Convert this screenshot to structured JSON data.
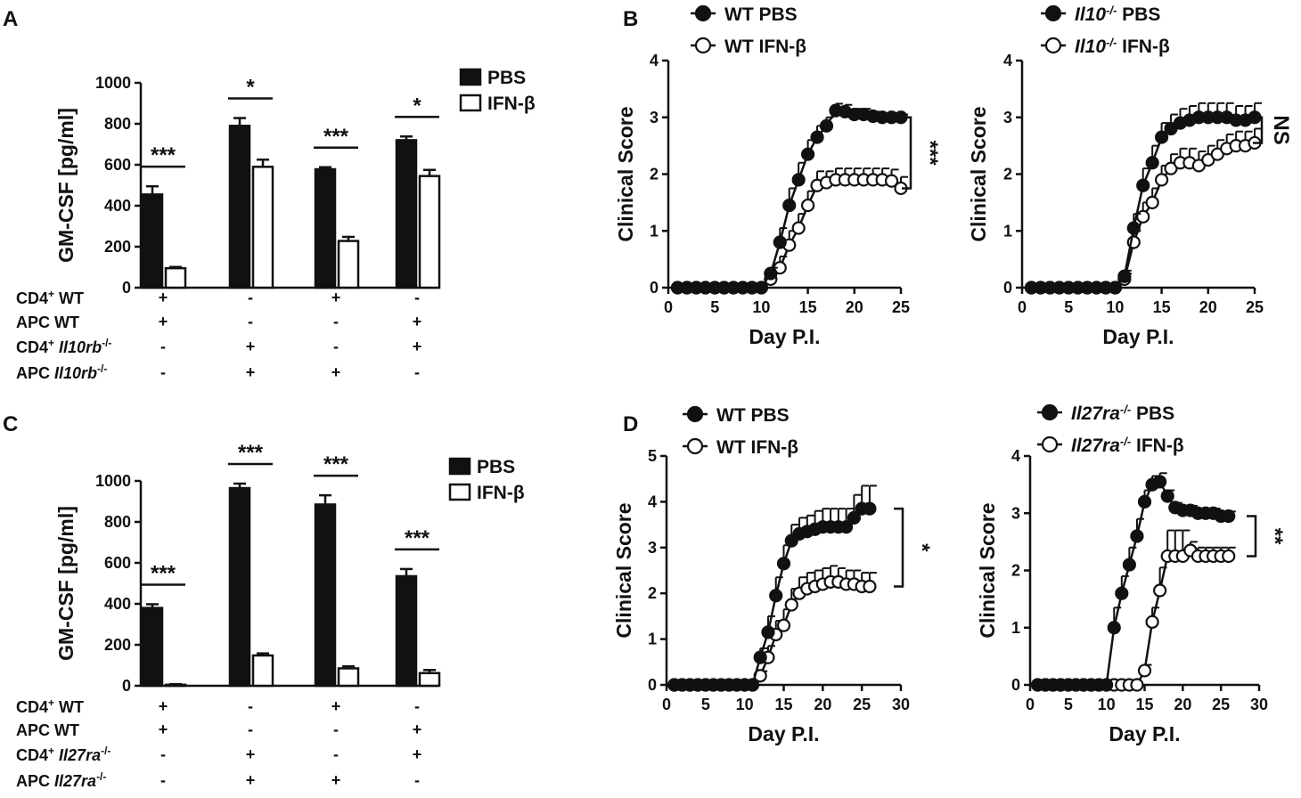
{
  "figure": {
    "panel_labels": [
      "A",
      "B",
      "C",
      "D"
    ]
  },
  "chart_data": [
    {
      "panel": "A",
      "type": "bar",
      "ylabel": "GM-CSF [pg/ml]",
      "ylim": [
        0,
        1000
      ],
      "yticks": [
        "0",
        "200",
        "400",
        "600",
        "800",
        "1000"
      ],
      "series": [
        {
          "name": "PBS",
          "color": "#111111",
          "values": [
            455,
            790,
            578,
            720
          ],
          "errors": [
            40,
            38,
            10,
            18
          ]
        },
        {
          "name": "IFN-β",
          "color": "#ffffff",
          "values": [
            95,
            590,
            228,
            545
          ],
          "errors": [
            6,
            35,
            20,
            30
          ]
        }
      ],
      "significance": [
        "***",
        "*",
        "***",
        "*"
      ],
      "conditions": [
        {
          "label": "CD4",
          "sup": "+",
          "suffix": " WT",
          "italic": "",
          "values": [
            "+",
            "-",
            "+",
            "-"
          ]
        },
        {
          "label": "APC WT",
          "sup": "",
          "suffix": "",
          "italic": "",
          "values": [
            "+",
            "-",
            "-",
            "+"
          ]
        },
        {
          "label": "CD4",
          "sup": "+",
          "suffix": " ",
          "italic": "Il10rb",
          "isup": "-/-",
          "values": [
            "-",
            "+",
            "-",
            "+"
          ]
        },
        {
          "label": "APC ",
          "sup": "",
          "suffix": "",
          "italic": "Il10rb",
          "isup": "-/-",
          "values": [
            "-",
            "+",
            "+",
            "-"
          ]
        }
      ]
    },
    {
      "panel": "C",
      "type": "bar",
      "ylabel": "GM-CSF [pg/ml]",
      "ylim": [
        0,
        1000
      ],
      "yticks": [
        "0",
        "200",
        "400",
        "600",
        "800",
        "1000"
      ],
      "series": [
        {
          "name": "PBS",
          "color": "#111111",
          "values": [
            380,
            965,
            885,
            535
          ],
          "errors": [
            18,
            22,
            45,
            35
          ]
        },
        {
          "name": "IFN-β",
          "color": "#ffffff",
          "values": [
            5,
            148,
            85,
            62
          ],
          "errors": [
            3,
            10,
            10,
            15
          ]
        }
      ],
      "significance": [
        "***",
        "***",
        "***",
        "***"
      ],
      "conditions": [
        {
          "label": "CD4",
          "sup": "+",
          "suffix": " WT",
          "italic": "",
          "values": [
            "+",
            "-",
            "+",
            "-"
          ]
        },
        {
          "label": "APC WT",
          "sup": "",
          "suffix": "",
          "italic": "",
          "values": [
            "+",
            "-",
            "-",
            "+"
          ]
        },
        {
          "label": "CD4",
          "sup": "+",
          "suffix": " ",
          "italic": "Il27ra",
          "isup": "-/-",
          "values": [
            "-",
            "+",
            "-",
            "+"
          ]
        },
        {
          "label": "APC ",
          "sup": "",
          "suffix": "",
          "italic": "Il27ra",
          "isup": "-/-",
          "values": [
            "-",
            "+",
            "+",
            "-"
          ]
        }
      ]
    },
    {
      "panel": "B",
      "type": "line",
      "xlabel": "Day P.I.",
      "ylabel": "Clinical Score",
      "xlim": [
        0,
        25
      ],
      "ylim": [
        0,
        4
      ],
      "xticks": [
        "0",
        "5",
        "10",
        "15",
        "20",
        "25"
      ],
      "yticks": [
        "0",
        "1",
        "2",
        "3",
        "4"
      ],
      "significance": "***",
      "series": [
        {
          "name": "WT PBS",
          "prefix": "WT",
          "sup": "",
          "rest": " PBS",
          "filled": true,
          "days": [
            1,
            2,
            3,
            4,
            5,
            6,
            7,
            8,
            9,
            10,
            11,
            12,
            13,
            14,
            15,
            16,
            17,
            18,
            19,
            20,
            21,
            22,
            23,
            24,
            25
          ],
          "values": [
            0,
            0,
            0,
            0,
            0,
            0,
            0,
            0,
            0,
            0,
            0.25,
            0.8,
            1.45,
            1.9,
            2.35,
            2.65,
            2.85,
            3.12,
            3.1,
            3.05,
            3.05,
            3.02,
            3.0,
            3.0,
            3.0
          ],
          "err": [
            0,
            0,
            0,
            0,
            0,
            0,
            0,
            0,
            0,
            0,
            0.1,
            0.25,
            0.3,
            0.3,
            0.25,
            0.2,
            0.15,
            0.12,
            0.12,
            0.1,
            0.1,
            0.08,
            0.07,
            0.05,
            0.05
          ]
        },
        {
          "name": "WT IFN-β",
          "prefix": "WT",
          "sup": "",
          "rest": " IFN-β",
          "filled": false,
          "days": [
            1,
            2,
            3,
            4,
            5,
            6,
            7,
            8,
            9,
            10,
            11,
            12,
            13,
            14,
            15,
            16,
            17,
            18,
            19,
            20,
            21,
            22,
            23,
            24,
            25
          ],
          "values": [
            0,
            0,
            0,
            0,
            0,
            0,
            0,
            0,
            0,
            0,
            0.15,
            0.35,
            0.75,
            1.05,
            1.45,
            1.8,
            1.85,
            1.9,
            1.9,
            1.9,
            1.9,
            1.9,
            1.9,
            1.88,
            1.75
          ],
          "err": [
            0,
            0,
            0,
            0,
            0,
            0,
            0,
            0,
            0,
            0,
            0.1,
            0.2,
            0.25,
            0.25,
            0.25,
            0.25,
            0.2,
            0.2,
            0.2,
            0.2,
            0.2,
            0.2,
            0.2,
            0.2,
            0.2
          ]
        }
      ]
    },
    {
      "panel": "B2",
      "type": "line",
      "xlabel": "Day P.I.",
      "ylabel": "Clinical Score",
      "xlim": [
        0,
        25
      ],
      "ylim": [
        0,
        4
      ],
      "xticks": [
        "0",
        "5",
        "10",
        "15",
        "20",
        "25"
      ],
      "yticks": [
        "0",
        "1",
        "2",
        "3",
        "4"
      ],
      "significance": "NS",
      "series": [
        {
          "name": "Il10-/- PBS",
          "prefix": "Il10",
          "sup": "-/-",
          "rest": " PBS",
          "filled": true,
          "days": [
            1,
            2,
            3,
            4,
            5,
            6,
            7,
            8,
            9,
            10,
            11,
            12,
            13,
            14,
            15,
            16,
            17,
            18,
            19,
            20,
            21,
            22,
            23,
            24,
            25
          ],
          "values": [
            0,
            0,
            0,
            0,
            0,
            0,
            0,
            0,
            0,
            0,
            0.2,
            1.05,
            1.8,
            2.2,
            2.65,
            2.8,
            2.9,
            2.95,
            3.0,
            3.0,
            3.0,
            3.0,
            2.95,
            2.95,
            3.0
          ],
          "err": [
            0,
            0,
            0,
            0,
            0,
            0,
            0,
            0,
            0,
            0,
            0.1,
            0.25,
            0.3,
            0.3,
            0.25,
            0.25,
            0.25,
            0.25,
            0.25,
            0.25,
            0.25,
            0.25,
            0.25,
            0.25,
            0.25
          ]
        },
        {
          "name": "Il10-/- IFN-β",
          "prefix": "Il10",
          "sup": "-/-",
          "rest": " IFN-β",
          "filled": false,
          "days": [
            1,
            2,
            3,
            4,
            5,
            6,
            7,
            8,
            9,
            10,
            11,
            12,
            13,
            14,
            15,
            16,
            17,
            18,
            19,
            20,
            21,
            22,
            23,
            24,
            25
          ],
          "values": [
            0,
            0,
            0,
            0,
            0,
            0,
            0,
            0,
            0,
            0,
            0.15,
            0.8,
            1.25,
            1.5,
            1.9,
            2.1,
            2.2,
            2.2,
            2.15,
            2.25,
            2.35,
            2.45,
            2.5,
            2.5,
            2.55
          ],
          "err": [
            0,
            0,
            0,
            0,
            0,
            0,
            0,
            0,
            0,
            0,
            0.1,
            0.2,
            0.25,
            0.25,
            0.25,
            0.25,
            0.25,
            0.25,
            0.25,
            0.25,
            0.25,
            0.25,
            0.25,
            0.25,
            0.25
          ]
        }
      ]
    },
    {
      "panel": "D",
      "type": "line",
      "xlabel": "Day P.I.",
      "ylabel": "Clinical Score",
      "xlim": [
        0,
        30
      ],
      "ylim": [
        0,
        5
      ],
      "xticks": [
        "0",
        "5",
        "10",
        "15",
        "20",
        "25",
        "30"
      ],
      "yticks": [
        "0",
        "1",
        "2",
        "3",
        "4",
        "5"
      ],
      "significance": "*",
      "series": [
        {
          "name": "WT PBS",
          "prefix": "WT",
          "sup": "",
          "rest": " PBS",
          "filled": true,
          "days": [
            1,
            2,
            3,
            4,
            5,
            6,
            7,
            8,
            9,
            10,
            11,
            12,
            13,
            14,
            15,
            16,
            17,
            18,
            19,
            20,
            21,
            22,
            23,
            24,
            25,
            26
          ],
          "values": [
            0,
            0,
            0,
            0,
            0,
            0,
            0,
            0,
            0,
            0,
            0,
            0.6,
            1.15,
            1.95,
            2.65,
            3.15,
            3.3,
            3.35,
            3.4,
            3.45,
            3.45,
            3.45,
            3.45,
            3.65,
            3.85,
            3.85
          ],
          "err": [
            0,
            0,
            0,
            0,
            0,
            0,
            0,
            0,
            0,
            0,
            0,
            0.2,
            0.35,
            0.4,
            0.4,
            0.35,
            0.35,
            0.35,
            0.4,
            0.4,
            0.4,
            0.4,
            0.4,
            0.5,
            0.5,
            0.5
          ]
        },
        {
          "name": "WT IFN-β",
          "prefix": "WT",
          "sup": "",
          "rest": " IFN-β",
          "filled": false,
          "days": [
            1,
            2,
            3,
            4,
            5,
            6,
            7,
            8,
            9,
            10,
            11,
            12,
            13,
            14,
            15,
            16,
            17,
            18,
            19,
            20,
            21,
            22,
            23,
            24,
            25,
            26
          ],
          "values": [
            0,
            0,
            0,
            0,
            0,
            0,
            0,
            0,
            0,
            0,
            0,
            0.2,
            0.6,
            1.1,
            1.3,
            1.75,
            2.0,
            2.1,
            2.15,
            2.2,
            2.25,
            2.25,
            2.2,
            2.2,
            2.15,
            2.15
          ],
          "err": [
            0,
            0,
            0,
            0,
            0,
            0,
            0,
            0,
            0,
            0,
            0,
            0.1,
            0.25,
            0.3,
            0.35,
            0.35,
            0.35,
            0.35,
            0.35,
            0.35,
            0.35,
            0.3,
            0.3,
            0.3,
            0.3,
            0.3
          ]
        }
      ]
    },
    {
      "panel": "D2",
      "type": "line",
      "xlabel": "Day P.I.",
      "ylabel": "Clinical Score",
      "xlim": [
        0,
        30
      ],
      "ylim": [
        0,
        4
      ],
      "xticks": [
        "0",
        "5",
        "10",
        "15",
        "20",
        "25",
        "30"
      ],
      "yticks": [
        "0",
        "1",
        "2",
        "3",
        "4"
      ],
      "significance": "**",
      "series": [
        {
          "name": "Il27ra-/- PBS",
          "prefix": "Il27ra",
          "sup": "-/-",
          "rest": " PBS",
          "filled": true,
          "days": [
            1,
            2,
            3,
            4,
            5,
            6,
            7,
            8,
            9,
            10,
            11,
            12,
            13,
            14,
            15,
            16,
            17,
            18,
            19,
            20,
            21,
            22,
            23,
            24,
            25,
            26
          ],
          "values": [
            0,
            0,
            0,
            0,
            0,
            0,
            0,
            0,
            0,
            0,
            1.0,
            1.6,
            2.1,
            2.6,
            3.2,
            3.5,
            3.55,
            3.3,
            3.1,
            3.05,
            3.05,
            3.0,
            3.0,
            3.0,
            2.95,
            2.95
          ],
          "err": [
            0,
            0,
            0,
            0,
            0,
            0,
            0,
            0,
            0,
            0,
            0.35,
            0.3,
            0.3,
            0.3,
            0.2,
            0.15,
            0.15,
            0.1,
            0.08,
            0.08,
            0.08,
            0.08,
            0.08,
            0.08,
            0.08,
            0.08
          ]
        },
        {
          "name": "Il27ra-/- IFN-β",
          "prefix": "Il27ra",
          "sup": "-/-",
          "rest": " IFN-β",
          "filled": false,
          "days": [
            1,
            2,
            3,
            4,
            5,
            6,
            7,
            8,
            9,
            10,
            11,
            12,
            13,
            14,
            15,
            16,
            17,
            18,
            19,
            20,
            21,
            22,
            23,
            24,
            25,
            26
          ],
          "values": [
            0,
            0,
            0,
            0,
            0,
            0,
            0,
            0,
            0,
            0,
            0,
            0,
            0,
            0,
            0.25,
            1.1,
            1.65,
            2.25,
            2.25,
            2.25,
            2.35,
            2.25,
            2.25,
            2.25,
            2.25,
            2.25
          ],
          "err": [
            0,
            0,
            0,
            0,
            0,
            0,
            0,
            0,
            0,
            0,
            0,
            0,
            0,
            0,
            0.1,
            0.25,
            0.4,
            0.45,
            0.45,
            0.45,
            0.15,
            0.15,
            0.15,
            0.15,
            0.15,
            0.15
          ]
        }
      ]
    }
  ]
}
